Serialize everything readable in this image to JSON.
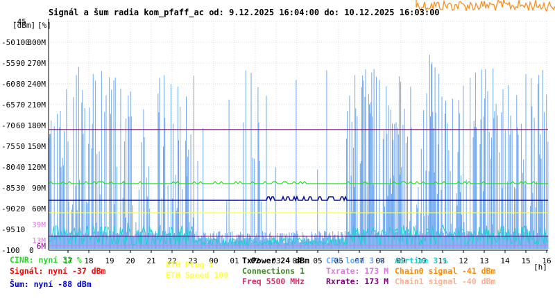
{
  "title": "Signál a šum radia kom_pfaff_ac od: 9.12.2025 16:04:00 do: 10.12.2025 16:03:00",
  "unit_labels": {
    "left": "[dBm]",
    "middle": "[%]",
    "x_unit": "[h]"
  },
  "colors": {
    "background": "#ffffff",
    "grid": "#dcdcdc",
    "axis": "#000000",
    "signal": "#6fa8f0",
    "noise": "#0b0b9c",
    "cinr": "#22dd22",
    "airtime": "#1ccfcf",
    "cpu": "#6fa8f0",
    "eth_plug": "#ffff33",
    "txpower_line": "#7a007a",
    "rxrate": "#7a007a",
    "txrate": "#dd77dd",
    "chain0": "#ff8800",
    "chain1": "#ffb090",
    "orange_noise": "#ff8c1a",
    "freq": "#cc3366",
    "connections": "#3a8a22"
  },
  "legend": [
    {
      "id": "cinr",
      "text": "CINR: nyní 32 %",
      "color": "#22dd22"
    },
    {
      "id": "signal",
      "text": "Signál: nyní -37 dBm",
      "color": "#ff0000"
    },
    {
      "id": "noise",
      "text": "Šum: nyní -88 dBm",
      "color": "#0000cc"
    },
    {
      "id": "eth_plug",
      "text": "ETH Plug 1",
      "color": "#ffff44"
    },
    {
      "id": "eth_speed",
      "text": "ETH Speed 100",
      "color": "#ffff44"
    },
    {
      "id": "txpower",
      "text": "TxPower 24 dBm",
      "color": "#000000"
    },
    {
      "id": "connections",
      "text": "Connections 1",
      "color": "#3a8a22"
    },
    {
      "id": "freq",
      "text": "Freq 5500 MHz",
      "color": "#cc3366"
    },
    {
      "id": "cpu",
      "text": "CPU load 3 %",
      "color": "#6fa8f0"
    },
    {
      "id": "txrate",
      "text": "Txrate: 173 M",
      "color": "#dd77dd"
    },
    {
      "id": "rxrate",
      "text": "Rxrate: 173 M",
      "color": "#7a007a"
    },
    {
      "id": "airtime",
      "text": "Airtime 3 %",
      "color": "#1ccfcf"
    },
    {
      "id": "chain0",
      "text": "Chain0 signal -41 dBm",
      "color": "#ff8800"
    },
    {
      "id": "chain1",
      "text": "Chain1 signal -40 dBm",
      "color": "#ffb090"
    }
  ],
  "chart_data": {
    "type": "line",
    "title": "Signál a šum radia kom_pfaff_ac od: 9.12.2025 16:04:00 do: 10.12.2025 16:03:00",
    "x_ticks": [
      "17",
      "18",
      "19",
      "20",
      "21",
      "22",
      "23",
      "00",
      "01",
      "02",
      "03",
      "04",
      "05",
      "06",
      "07",
      "08",
      "09",
      "10",
      "11",
      "12",
      "13",
      "14",
      "15",
      "16"
    ],
    "x_unit": "[h]",
    "y_dbm_ticks": [
      "-45",
      "-50",
      "-55",
      "-60",
      "-65",
      "-70",
      "-75",
      "-80",
      "-85",
      "-90",
      "-95",
      "-100"
    ],
    "y_pct_ticks": [
      "100",
      "90",
      "80",
      "70",
      "60",
      "50",
      "40",
      "30",
      "20",
      "10",
      "0"
    ],
    "y_rate_ticks": [
      "300M",
      "270M",
      "240M",
      "210M",
      "180M",
      "150M",
      "120M",
      "90M",
      "60M"
    ],
    "y_rate_ticks_faint": [
      {
        "label": "39M",
        "color": "#dd77dd"
      },
      {
        "label": "13M",
        "color": "#dd77dd"
      },
      {
        "label": "6M",
        "color": "#7a007a"
      }
    ],
    "ylim_dbm": [
      -100,
      -45
    ],
    "grid": true,
    "current_values": {
      "cinr_pct": 32,
      "signal_dbm": -37,
      "noise_dbm": -88,
      "txpower_dbm": 24,
      "freq_mhz": 5500,
      "cpu_pct": 3,
      "txrate_m": 173,
      "rxrate_m": 173,
      "airtime_pct": 3,
      "chain0_dbm": -41,
      "chain1_dbm": -40
    },
    "series": [
      {
        "name": "CINR",
        "level_pct": 32,
        "color": "#22dd22"
      },
      {
        "name": "Šum",
        "level_dbm": -88,
        "color": "#0b0b9c"
      },
      {
        "name": "TxPower",
        "level_dbm": -71,
        "color": "#7a007a"
      },
      {
        "name": "ETH Plug",
        "level_dbm": -91,
        "color": "#ffff33"
      },
      {
        "name": "Signál",
        "color": "#6fa8f0"
      },
      {
        "name": "Airtime",
        "color": "#1ccfcf"
      }
    ]
  }
}
